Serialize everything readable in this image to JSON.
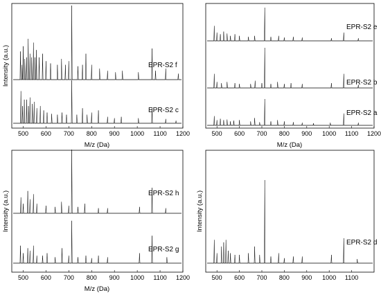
{
  "figure": {
    "panel_top_left": {
      "xlabel": "M/z (Da)",
      "ylabel": "Intensity (a.u.)"
    },
    "panel_top_right": {
      "xlabel": "M/z (Da)",
      "ylabel": ""
    },
    "panel_bottom_left": {
      "xlabel": "M/z (Da)",
      "ylabel": "Intensity (a.u.)"
    },
    "panel_bottom_right": {
      "xlabel": "",
      "ylabel": "Intensity (a.u.)"
    }
  },
  "chart_data": [
    {
      "type": "line",
      "title": "",
      "xlabel": "M/z (Da)",
      "ylabel": "Intensity (a.u.)",
      "xlim": [
        450,
        1200
      ],
      "xticks": [
        500,
        600,
        700,
        800,
        900,
        1000,
        1100,
        1200
      ],
      "y_ticks_shown": false,
      "series": [
        {
          "name": "EPR-S2 f",
          "peaks": [
            [
              488,
              0.38
            ],
            [
              495,
              0.2
            ],
            [
              500,
              0.45
            ],
            [
              507,
              0.28
            ],
            [
              515,
              0.3
            ],
            [
              522,
              0.55
            ],
            [
              530,
              0.35
            ],
            [
              537,
              0.3
            ],
            [
              545,
              0.5
            ],
            [
              552,
              0.3
            ],
            [
              558,
              0.4
            ],
            [
              570,
              0.3
            ],
            [
              585,
              0.35
            ],
            [
              600,
              0.25
            ],
            [
              620,
              0.22
            ],
            [
              650,
              0.2
            ],
            [
              668,
              0.28
            ],
            [
              685,
              0.2
            ],
            [
              700,
              0.25
            ],
            [
              713,
              1.0
            ],
            [
              740,
              0.18
            ],
            [
              760,
              0.2
            ],
            [
              775,
              0.35
            ],
            [
              800,
              0.2
            ],
            [
              835,
              0.15
            ],
            [
              870,
              0.12
            ],
            [
              905,
              0.1
            ],
            [
              935,
              0.12
            ],
            [
              1005,
              0.1
            ],
            [
              1065,
              0.42
            ],
            [
              1080,
              0.12
            ],
            [
              1125,
              0.15
            ],
            [
              1180,
              0.08
            ]
          ]
        },
        {
          "name": "EPR-S2 c",
          "peaks": [
            [
              490,
              0.75
            ],
            [
              497,
              0.4
            ],
            [
              505,
              0.55
            ],
            [
              515,
              0.55
            ],
            [
              523,
              0.4
            ],
            [
              530,
              0.6
            ],
            [
              540,
              0.45
            ],
            [
              548,
              0.5
            ],
            [
              560,
              0.35
            ],
            [
              575,
              0.4
            ],
            [
              590,
              0.3
            ],
            [
              605,
              0.25
            ],
            [
              625,
              0.22
            ],
            [
              650,
              0.2
            ],
            [
              670,
              0.25
            ],
            [
              690,
              0.2
            ],
            [
              713,
              1.0
            ],
            [
              735,
              0.2
            ],
            [
              760,
              0.35
            ],
            [
              780,
              0.2
            ],
            [
              800,
              0.25
            ],
            [
              830,
              0.3
            ],
            [
              870,
              0.15
            ],
            [
              900,
              0.12
            ],
            [
              930,
              0.15
            ],
            [
              1005,
              0.12
            ],
            [
              1065,
              0.35
            ],
            [
              1125,
              0.1
            ],
            [
              1170,
              0.06
            ]
          ]
        }
      ]
    },
    {
      "type": "line",
      "title": "",
      "xlabel": "M/z (Da)",
      "ylabel": "",
      "xlim": [
        450,
        1200
      ],
      "xticks": [
        500,
        600,
        700,
        800,
        900,
        1000,
        1100,
        1200
      ],
      "y_ticks_shown": false,
      "series": [
        {
          "name": "EPR-S2 e",
          "peaks": [
            [
              488,
              0.45
            ],
            [
              500,
              0.25
            ],
            [
              515,
              0.2
            ],
            [
              530,
              0.28
            ],
            [
              545,
              0.22
            ],
            [
              560,
              0.15
            ],
            [
              580,
              0.2
            ],
            [
              600,
              0.15
            ],
            [
              640,
              0.12
            ],
            [
              668,
              0.15
            ],
            [
              713,
              1.0
            ],
            [
              740,
              0.12
            ],
            [
              775,
              0.15
            ],
            [
              800,
              0.1
            ],
            [
              840,
              0.12
            ],
            [
              880,
              0.1
            ],
            [
              1010,
              0.08
            ],
            [
              1065,
              0.25
            ],
            [
              1130,
              0.08
            ]
          ]
        },
        {
          "name": "EPR-S2 b",
          "peaks": [
            [
              488,
              0.35
            ],
            [
              500,
              0.15
            ],
            [
              520,
              0.12
            ],
            [
              545,
              0.15
            ],
            [
              580,
              0.12
            ],
            [
              600,
              0.1
            ],
            [
              650,
              0.1
            ],
            [
              670,
              0.18
            ],
            [
              700,
              0.12
            ],
            [
              713,
              1.0
            ],
            [
              740,
              0.1
            ],
            [
              770,
              0.15
            ],
            [
              800,
              0.1
            ],
            [
              830,
              0.12
            ],
            [
              880,
              0.1
            ],
            [
              1010,
              0.12
            ],
            [
              1065,
              0.35
            ],
            [
              1130,
              0.08
            ]
          ]
        },
        {
          "name": "EPR-S2 a",
          "peaks": [
            [
              488,
              0.35
            ],
            [
              500,
              0.2
            ],
            [
              515,
              0.25
            ],
            [
              530,
              0.2
            ],
            [
              545,
              0.22
            ],
            [
              560,
              0.15
            ],
            [
              575,
              0.18
            ],
            [
              600,
              0.2
            ],
            [
              650,
              0.15
            ],
            [
              668,
              0.28
            ],
            [
              690,
              0.12
            ],
            [
              713,
              1.0
            ],
            [
              740,
              0.15
            ],
            [
              770,
              0.2
            ],
            [
              800,
              0.15
            ],
            [
              840,
              0.12
            ],
            [
              880,
              0.1
            ],
            [
              930,
              0.08
            ],
            [
              1005,
              0.1
            ],
            [
              1065,
              0.45
            ],
            [
              1130,
              0.1
            ]
          ]
        }
      ]
    },
    {
      "type": "line",
      "title": "",
      "xlabel": "M/z (Da)",
      "ylabel": "Intensity (a.u.)",
      "xlim": [
        450,
        1200
      ],
      "xticks": [
        500,
        600,
        700,
        800,
        900,
        1000,
        1100,
        1200
      ],
      "y_ticks_shown": false,
      "series": [
        {
          "name": "EPR-S2 h",
          "peaks": [
            [
              490,
              0.25
            ],
            [
              500,
              0.15
            ],
            [
              520,
              0.35
            ],
            [
              530,
              0.22
            ],
            [
              545,
              0.3
            ],
            [
              560,
              0.15
            ],
            [
              600,
              0.12
            ],
            [
              640,
              0.1
            ],
            [
              668,
              0.18
            ],
            [
              700,
              0.12
            ],
            [
              713,
              1.0
            ],
            [
              740,
              0.1
            ],
            [
              770,
              0.15
            ],
            [
              830,
              0.08
            ],
            [
              870,
              0.08
            ],
            [
              1010,
              0.1
            ],
            [
              1065,
              0.4
            ],
            [
              1125,
              0.08
            ]
          ]
        },
        {
          "name": "EPR-S2 g",
          "peaks": [
            [
              488,
              0.35
            ],
            [
              500,
              0.2
            ],
            [
              520,
              0.3
            ],
            [
              530,
              0.25
            ],
            [
              545,
              0.35
            ],
            [
              560,
              0.15
            ],
            [
              585,
              0.15
            ],
            [
              605,
              0.2
            ],
            [
              640,
              0.12
            ],
            [
              670,
              0.3
            ],
            [
              700,
              0.15
            ],
            [
              713,
              0.85
            ],
            [
              740,
              0.12
            ],
            [
              775,
              0.15
            ],
            [
              800,
              0.1
            ],
            [
              830,
              0.15
            ],
            [
              870,
              0.12
            ],
            [
              1010,
              0.2
            ],
            [
              1065,
              0.55
            ],
            [
              1130,
              0.12
            ]
          ]
        }
      ]
    },
    {
      "type": "line",
      "title": "",
      "xlabel": "",
      "ylabel": "Intensity (a.u.)",
      "xlim": [
        450,
        1200
      ],
      "xticks": [
        500,
        600,
        700,
        800,
        900,
        1000,
        1100
      ],
      "y_ticks_shown": false,
      "series": [
        {
          "name": "EPR-S2 d",
          "peaks": [
            [
              488,
              0.28
            ],
            [
              500,
              0.12
            ],
            [
              520,
              0.2
            ],
            [
              530,
              0.25
            ],
            [
              540,
              0.28
            ],
            [
              550,
              0.15
            ],
            [
              560,
              0.12
            ],
            [
              580,
              0.1
            ],
            [
              600,
              0.1
            ],
            [
              640,
              0.12
            ],
            [
              668,
              0.2
            ],
            [
              690,
              0.1
            ],
            [
              713,
              1.0
            ],
            [
              740,
              0.08
            ],
            [
              775,
              0.12
            ],
            [
              800,
              0.06
            ],
            [
              840,
              0.08
            ],
            [
              880,
              0.08
            ],
            [
              1010,
              0.1
            ],
            [
              1065,
              0.3
            ],
            [
              1125,
              0.05
            ]
          ]
        }
      ]
    }
  ]
}
